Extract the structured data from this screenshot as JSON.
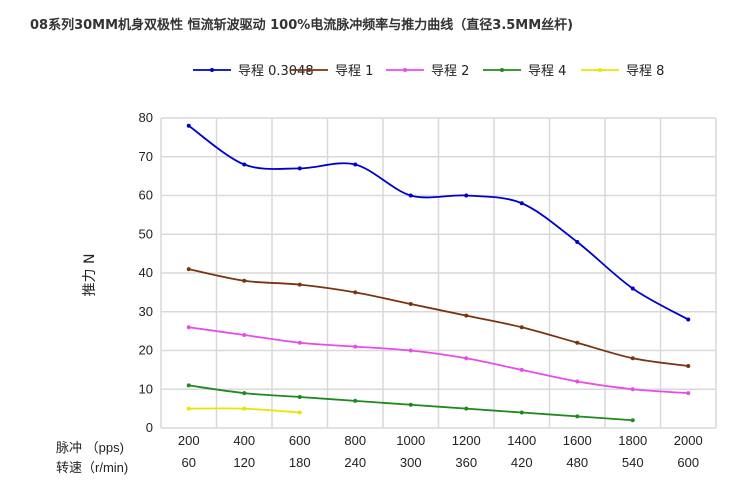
{
  "chart_data": {
    "type": "line",
    "title": "08系列30MM机身双极性 恒流斩波驱动 100%电流脉冲频率与推力曲线（直径3.5MM丝杆)",
    "ylabel": "推力 N",
    "x_row1_label": "脉冲 （pps)",
    "x_row2_label": "转速（r/min)",
    "categories": [
      "200",
      "400",
      "600",
      "800",
      "1000",
      "1200",
      "1400",
      "1600",
      "1800",
      "2000"
    ],
    "secondary_categories": [
      "60",
      "120",
      "180",
      "240",
      "300",
      "360",
      "420",
      "480",
      "540",
      "600"
    ],
    "ylim": [
      0,
      80
    ],
    "yticks": [
      "0",
      "10",
      "20",
      "30",
      "40",
      "50",
      "60",
      "70",
      "80"
    ],
    "grid": true,
    "legend_position": "top",
    "series": [
      {
        "name": "导程 0.3048",
        "color": "#0000cc",
        "values": [
          78,
          68,
          67,
          68,
          60,
          60,
          58,
          48,
          36,
          28
        ]
      },
      {
        "name": "导程  1",
        "color": "#7a3410",
        "values": [
          41,
          38,
          37,
          35,
          32,
          29,
          26,
          22,
          18,
          16
        ]
      },
      {
        "name": "导程  2",
        "color": "#e84ce8",
        "values": [
          26,
          24,
          22,
          21,
          20,
          18,
          15,
          12,
          10,
          9
        ]
      },
      {
        "name": "导程  4",
        "color": "#1f8a1f",
        "values": [
          11,
          9,
          8,
          7,
          6,
          5,
          4,
          3,
          2,
          null
        ]
      },
      {
        "name": "导程  8",
        "color": "#e6e600",
        "values": [
          5,
          5,
          4,
          null,
          null,
          null,
          null,
          null,
          null,
          null
        ]
      }
    ]
  }
}
